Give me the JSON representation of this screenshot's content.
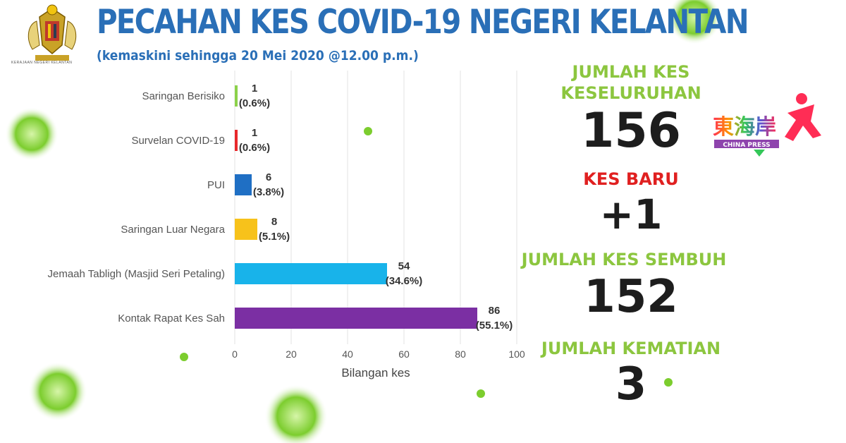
{
  "header": {
    "title": "PECAHAN KES COVID-19 NEGERI KELANTAN",
    "subtitle": "(kemaskini sehingga 20 Mei 2020 @12.00 p.m.)"
  },
  "stats": {
    "total_label_1": "JUMLAH KES",
    "total_label_2": "KESELURUHAN",
    "total_value": "156",
    "new_label": "KES BARU",
    "new_value": "+1",
    "recovered_label": "JUMLAH KES SEMBUH",
    "recovered_value": "152",
    "deaths_label": "JUMLAH KEMATIAN",
    "deaths_value": "3"
  },
  "logo": {
    "name": "東海岸",
    "sub": "CHINA PRESS"
  },
  "colors": {
    "title": "#2a6fb7",
    "green_label": "#8cc63f",
    "red_label": "#e02020",
    "virus": "#7ccd2e"
  },
  "chart_data": {
    "type": "bar",
    "orientation": "horizontal",
    "categories": [
      "Saringan Berisiko",
      "Survelan COVID-19",
      "PUI",
      "Saringan Luar Negara",
      "Jemaah Tabligh (Masjid Seri Petaling)",
      "Kontak Rapat Kes Sah"
    ],
    "values": [
      1,
      1,
      6,
      8,
      54,
      86
    ],
    "percent_labels": [
      "(0.6%)",
      "(0.6%)",
      "(3.8%)",
      "(5.1%)",
      "(34.6%)",
      "(55.1%)"
    ],
    "bar_colors": [
      "#8cd14a",
      "#e8282b",
      "#1f6fc4",
      "#f7c21b",
      "#18b3ea",
      "#7b2fa3"
    ],
    "xlabel": "Bilangan kes",
    "xlim": [
      0,
      100
    ],
    "xticks": [
      0,
      20,
      40,
      60,
      80,
      100
    ],
    "grid": true
  }
}
